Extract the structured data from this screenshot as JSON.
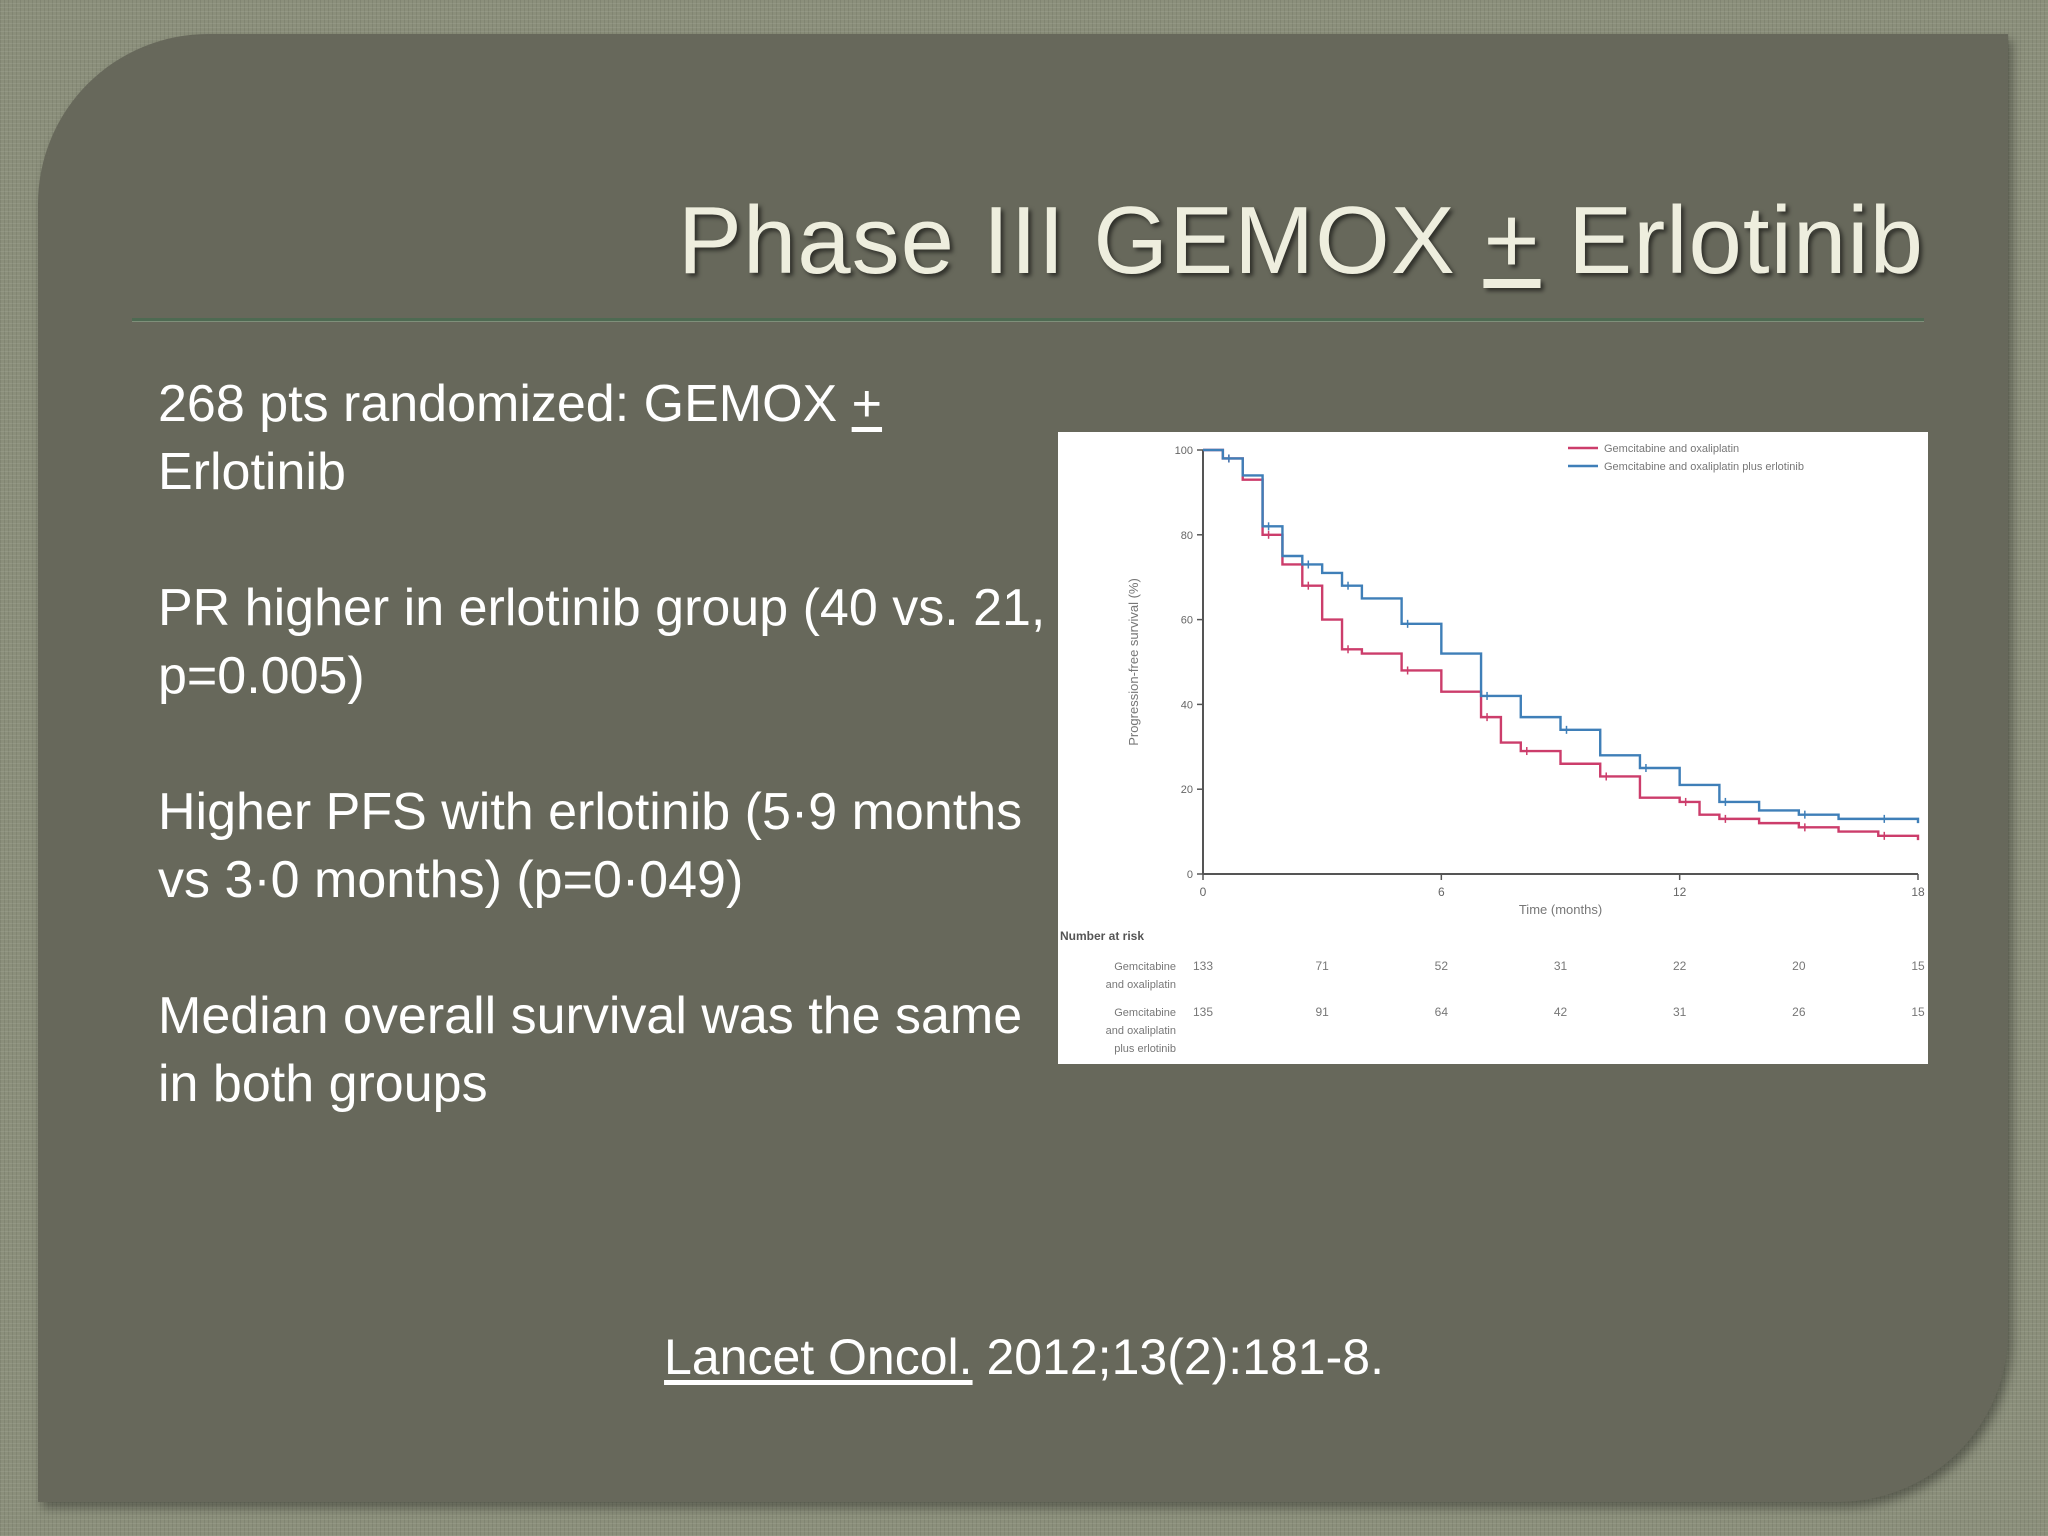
{
  "slide": {
    "title_main": "Phase III GEMOX ",
    "title_pm": "+",
    "title_tail": " Erlotinib"
  },
  "bullets": [
    {
      "pre": "268 pts randomized: GEMOX ",
      "pm": "+",
      "post": " Erlotinib"
    },
    {
      "text": "PR higher in erlotinib group (40 vs. 21, p=0.005)"
    },
    {
      "text": "Higher PFS with erlotinib (5·9 months vs 3·0 months) (p=0·049)"
    },
    {
      "text": "Median overall survival was the same in both groups"
    }
  ],
  "citation": {
    "journal": "Lancet Oncol.",
    "ref": " 2012;13(2):181-8."
  },
  "chart_data": {
    "type": "line",
    "xlabel": "Time (months)",
    "ylabel": "Progression-free survival (%)",
    "xlim": [
      0,
      18
    ],
    "ylim": [
      0,
      100
    ],
    "xticks": [
      "0",
      "6",
      "12",
      "18"
    ],
    "yticks": [
      "0",
      "20",
      "40",
      "60",
      "80",
      "100"
    ],
    "legend_position": "top-right",
    "colors": {
      "gemox": "#cc3d6b",
      "gemox_erlotinib": "#3f7fb8"
    },
    "series": [
      {
        "name": "Gemcitabine and oxaliplatin",
        "key": "gemox",
        "points": [
          [
            0,
            100
          ],
          [
            0.5,
            98
          ],
          [
            1,
            93
          ],
          [
            1.5,
            80
          ],
          [
            2,
            73
          ],
          [
            2.5,
            68
          ],
          [
            3,
            60
          ],
          [
            3.5,
            53
          ],
          [
            4,
            52
          ],
          [
            5,
            48
          ],
          [
            6,
            43
          ],
          [
            7,
            37
          ],
          [
            7.5,
            31
          ],
          [
            8,
            29
          ],
          [
            9,
            26
          ],
          [
            10,
            23
          ],
          [
            11,
            18
          ],
          [
            12,
            17
          ],
          [
            12.5,
            14
          ],
          [
            13,
            13
          ],
          [
            14,
            12
          ],
          [
            15,
            11
          ],
          [
            16,
            10
          ],
          [
            17,
            9
          ],
          [
            18,
            8
          ]
        ]
      },
      {
        "name": "Gemcitabine and oxaliplatin plus erlotinib",
        "key": "gemox_erlotinib",
        "points": [
          [
            0,
            100
          ],
          [
            0.5,
            98
          ],
          [
            1,
            94
          ],
          [
            1.5,
            82
          ],
          [
            2,
            75
          ],
          [
            2.5,
            73
          ],
          [
            3,
            71
          ],
          [
            3.5,
            68
          ],
          [
            4,
            65
          ],
          [
            5,
            59
          ],
          [
            6,
            52
          ],
          [
            7,
            42
          ],
          [
            8,
            37
          ],
          [
            9,
            34
          ],
          [
            10,
            28
          ],
          [
            11,
            25
          ],
          [
            12,
            21
          ],
          [
            13,
            17
          ],
          [
            14,
            15
          ],
          [
            15,
            14
          ],
          [
            16,
            13
          ],
          [
            17,
            13
          ],
          [
            18,
            12
          ]
        ]
      }
    ],
    "risk_table": {
      "title": "Number at risk",
      "times": [
        0,
        3,
        6,
        9,
        12,
        15,
        18
      ],
      "rows": [
        {
          "label_lines": [
            "Gemcitabine",
            "and oxaliplatin"
          ],
          "values": [
            "133",
            "71",
            "52",
            "31",
            "22",
            "20",
            "15"
          ]
        },
        {
          "label_lines": [
            "Gemcitabine",
            "and oxaliplatin",
            "plus erlotinib"
          ],
          "values": [
            "135",
            "91",
            "64",
            "42",
            "31",
            "26",
            "15"
          ]
        }
      ]
    }
  }
}
